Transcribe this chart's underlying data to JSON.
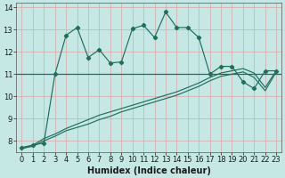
{
  "x": [
    0,
    1,
    2,
    3,
    4,
    5,
    6,
    7,
    8,
    9,
    10,
    11,
    12,
    13,
    14,
    15,
    16,
    17,
    18,
    19,
    20,
    21,
    22,
    23
  ],
  "line1": [
    7.7,
    7.8,
    7.9,
    11.0,
    12.75,
    13.1,
    11.75,
    12.1,
    11.5,
    11.55,
    13.05,
    13.2,
    12.65,
    13.8,
    13.1,
    13.1,
    12.65,
    11.0,
    11.35,
    11.35,
    10.65,
    10.35,
    11.15,
    11.15
  ],
  "line2": [
    7.65,
    7.8,
    8.1,
    8.3,
    8.55,
    8.75,
    8.95,
    9.15,
    9.3,
    9.45,
    9.6,
    9.75,
    9.9,
    10.05,
    10.2,
    10.4,
    10.6,
    10.85,
    11.05,
    11.15,
    11.25,
    11.05,
    10.4,
    11.15
  ],
  "line3": [
    7.65,
    7.75,
    8.0,
    8.2,
    8.45,
    8.6,
    8.75,
    8.95,
    9.1,
    9.3,
    9.45,
    9.6,
    9.75,
    9.9,
    10.05,
    10.25,
    10.45,
    10.7,
    10.9,
    11.0,
    11.1,
    10.85,
    10.25,
    11.1
  ],
  "hline_y": 11.0,
  "line_color": "#1f6f5e",
  "bg_color": "#c5e8e5",
  "grid_color": "#d9b0b0",
  "xlabel": "Humidex (Indice chaleur)",
  "ylim": [
    7.5,
    14.2
  ],
  "xlim": [
    -0.5,
    23.5
  ],
  "yticks": [
    8,
    9,
    10,
    11,
    12,
    13,
    14
  ],
  "xticks": [
    0,
    1,
    2,
    3,
    4,
    5,
    6,
    7,
    8,
    9,
    10,
    11,
    12,
    13,
    14,
    15,
    16,
    17,
    18,
    19,
    20,
    21,
    22,
    23
  ],
  "tick_fontsize": 6,
  "xlabel_fontsize": 7
}
